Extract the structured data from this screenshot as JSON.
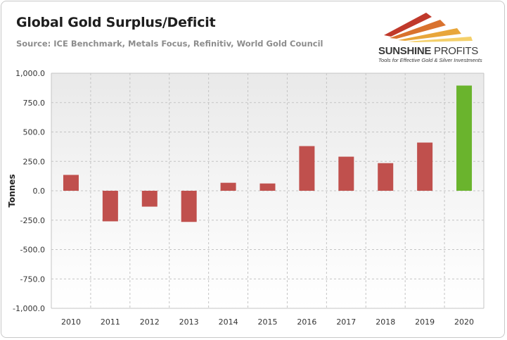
{
  "header": {
    "title": "Global Gold Surplus/Deficit",
    "subtitle": "Source: ICE Benchmark, Metals Focus, Refinitiv, World Gold Council"
  },
  "logo": {
    "name_part1": "SUNSHINE",
    "name_part2": "PROFITS",
    "tagline": "Tools for Effective Gold & Silver Investments",
    "colors": [
      "#c0392b",
      "#e8a63a",
      "#f4d06a"
    ]
  },
  "chart_data": {
    "type": "bar",
    "title": "Global Gold Surplus/Deficit",
    "subtitle": "Source: ICE Benchmark, Metals Focus, Refinitiv, World Gold Council",
    "xlabel": "",
    "ylabel": "Tonnes",
    "categories": [
      "2010",
      "2011",
      "2012",
      "2013",
      "2014",
      "2015",
      "2016",
      "2017",
      "2018",
      "2019",
      "2020"
    ],
    "values": [
      135,
      -260,
      -135,
      -265,
      68,
      62,
      380,
      290,
      235,
      410,
      895
    ],
    "bar_colors": [
      "#c0504d",
      "#c0504d",
      "#c0504d",
      "#c0504d",
      "#c0504d",
      "#c0504d",
      "#c0504d",
      "#c0504d",
      "#c0504d",
      "#c0504d",
      "#6ab42d"
    ],
    "ylim": [
      -1000,
      1000
    ],
    "yticks": [
      1000,
      750,
      500,
      250,
      0,
      -250,
      -500,
      -750,
      -1000
    ],
    "ytick_labels": [
      "1,000.0",
      "750.0",
      "500.0",
      "250.0",
      "0.0",
      "-250.0",
      "-500.0",
      "-750.0",
      "-1,000.0"
    ],
    "grid": true,
    "legend": "none"
  }
}
